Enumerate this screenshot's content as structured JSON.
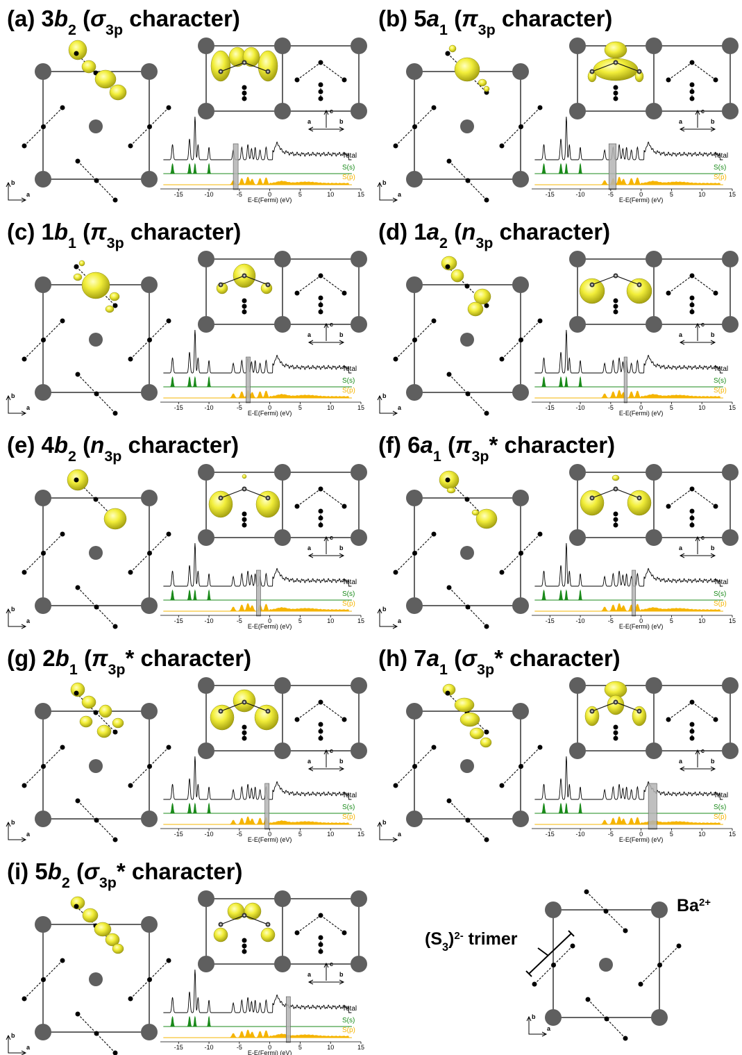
{
  "crystal_axes": {
    "a": "a",
    "b": "b",
    "c": "c"
  },
  "dos": {
    "xlabel": "E-E(Fermi) (eV)",
    "xlim": [
      -18,
      15
    ],
    "xticks": [
      -15,
      -10,
      -5,
      0,
      5,
      10,
      15
    ],
    "series_labels": [
      "Total",
      "S(s)",
      "S(p)"
    ],
    "colors": [
      "#000000",
      "#1a8a1a",
      "#f5b400"
    ],
    "highlight_color": "#b4b4b4"
  },
  "panels": [
    {
      "title": [
        {
          "text": "(a) 3"
        },
        {
          "text": "b",
          "style": "italic"
        },
        {
          "text": "2",
          "style": "sub"
        },
        {
          "text": " ("
        },
        {
          "text": "σ",
          "style": "italic"
        },
        {
          "text": "3p",
          "style": "sub"
        },
        {
          "text": " character)"
        }
      ],
      "highlight_range": [
        -6.0,
        -5.2
      ]
    },
    {
      "title": [
        {
          "text": "(b) 5"
        },
        {
          "text": "a",
          "style": "italic"
        },
        {
          "text": "1",
          "style": "sub"
        },
        {
          "text": " ("
        },
        {
          "text": "π",
          "style": "italic"
        },
        {
          "text": "3p",
          "style": "sub"
        },
        {
          "text": " character)"
        }
      ],
      "highlight_range": [
        -5.3,
        -4.1
      ]
    },
    {
      "title": [
        {
          "text": "(c) 1"
        },
        {
          "text": "b",
          "style": "italic"
        },
        {
          "text": "1",
          "style": "sub"
        },
        {
          "text": " ("
        },
        {
          "text": "π",
          "style": "italic"
        },
        {
          "text": "3p",
          "style": "sub"
        },
        {
          "text": " character)"
        }
      ],
      "highlight_range": [
        -3.9,
        -3.2
      ]
    },
    {
      "title": [
        {
          "text": "(d) 1"
        },
        {
          "text": "a",
          "style": "italic"
        },
        {
          "text": "2",
          "style": "sub"
        },
        {
          "text": " ("
        },
        {
          "text": "n",
          "style": "italic"
        },
        {
          "text": "3p",
          "style": "sub"
        },
        {
          "text": " character)"
        }
      ],
      "highlight_range": [
        -2.8,
        -2.3
      ]
    },
    {
      "title": [
        {
          "text": "(e) 4"
        },
        {
          "text": "b",
          "style": "italic"
        },
        {
          "text": "2",
          "style": "sub"
        },
        {
          "text": " ("
        },
        {
          "text": "n",
          "style": "italic"
        },
        {
          "text": "3p",
          "style": "sub"
        },
        {
          "text": " character)"
        }
      ],
      "highlight_range": [
        -2.2,
        -1.5
      ]
    },
    {
      "title": [
        {
          "text": "(f) 6"
        },
        {
          "text": "a",
          "style": "italic"
        },
        {
          "text": "1",
          "style": "sub"
        },
        {
          "text": " ("
        },
        {
          "text": "π",
          "style": "italic"
        },
        {
          "text": "3p",
          "style": "sub"
        },
        {
          "text": "* character)"
        }
      ],
      "highlight_range": [
        -1.5,
        -0.9
      ]
    },
    {
      "title": [
        {
          "text": "(g) 2"
        },
        {
          "text": "b",
          "style": "italic"
        },
        {
          "text": "1",
          "style": "sub"
        },
        {
          "text": " ("
        },
        {
          "text": "π",
          "style": "italic"
        },
        {
          "text": "3p",
          "style": "sub"
        },
        {
          "text": "* character)"
        }
      ],
      "highlight_range": [
        -0.8,
        -0.1
      ]
    },
    {
      "title": [
        {
          "text": "(h) 7"
        },
        {
          "text": "a",
          "style": "italic"
        },
        {
          "text": "1",
          "style": "sub"
        },
        {
          "text": " ("
        },
        {
          "text": "σ",
          "style": "italic"
        },
        {
          "text": "3p",
          "style": "sub"
        },
        {
          "text": "* character)"
        }
      ],
      "highlight_range": [
        1.2,
        2.6
      ]
    },
    {
      "title": [
        {
          "text": "(i) 5"
        },
        {
          "text": "b",
          "style": "italic"
        },
        {
          "text": "2",
          "style": "sub"
        },
        {
          "text": " ("
        },
        {
          "text": "σ",
          "style": "italic"
        },
        {
          "text": "3p",
          "style": "sub"
        },
        {
          "text": "* character)"
        }
      ],
      "highlight_range": [
        2.7,
        3.4
      ]
    }
  ],
  "legend_panel": {
    "trimer": [
      {
        "text": "(S"
      },
      {
        "text": "3",
        "style": "sub"
      },
      {
        "text": ")"
      },
      {
        "text": "2-",
        "style": "sup"
      },
      {
        "text": " trimer"
      }
    ],
    "cation": [
      {
        "text": "Ba"
      },
      {
        "text": "2+",
        "style": "sup"
      }
    ]
  }
}
